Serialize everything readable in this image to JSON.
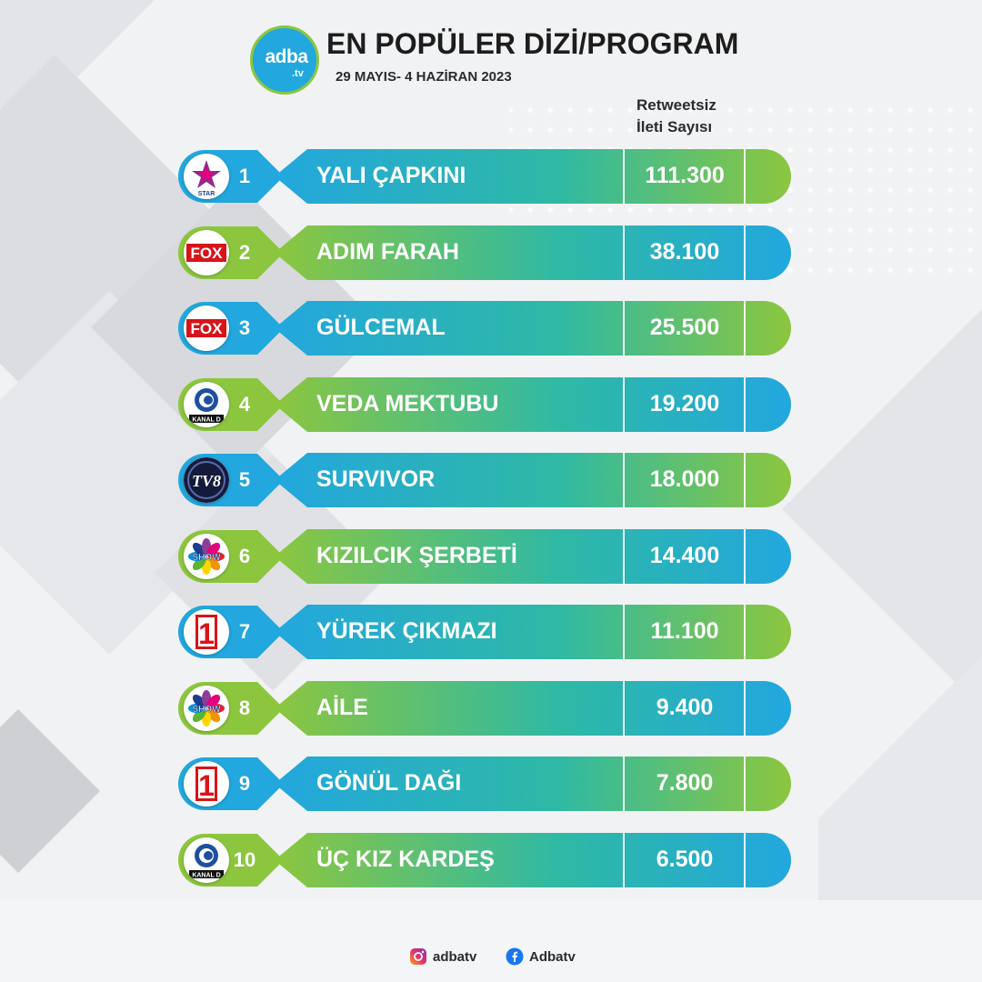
{
  "header": {
    "logo_text": "adba",
    "logo_sub": ".tv",
    "title": "EN POPÜLER DİZİ/PROGRAM",
    "subtitle": "29 MAYIS- 4 HAZİRAN 2023",
    "column_header_line1": "Retweetsiz",
    "column_header_line2": "İleti Sayısı"
  },
  "chart_data": {
    "type": "table",
    "title": "EN POPÜLER DİZİ/PROGRAM",
    "subtitle": "29 MAYIS- 4 HAZİRAN 2023",
    "value_label": "Retweetsiz İleti Sayısı",
    "rows": [
      {
        "rank": "1",
        "name": "YALI ÇAPKINI",
        "value": "111.300",
        "channel": "star-tv-logo",
        "channel_text": "STAR",
        "accent": "blue"
      },
      {
        "rank": "2",
        "name": "ADIM FARAH",
        "value": "38.100",
        "channel": "fox-logo",
        "channel_text": "FOX",
        "accent": "green"
      },
      {
        "rank": "3",
        "name": "GÜLCEMAL",
        "value": "25.500",
        "channel": "fox-logo",
        "channel_text": "FOX",
        "accent": "blue"
      },
      {
        "rank": "4",
        "name": "VEDA MEKTUBU",
        "value": "19.200",
        "channel": "kanal-d-logo",
        "channel_text": "KANAL D",
        "accent": "green"
      },
      {
        "rank": "5",
        "name": "SURVIVOR",
        "value": "18.000",
        "channel": "tv8-logo",
        "channel_text": "TV8",
        "accent": "blue"
      },
      {
        "rank": "6",
        "name": "KIZILCIK ŞERBETİ",
        "value": "14.400",
        "channel": "show-tv-logo",
        "channel_text": "SHOW",
        "accent": "green"
      },
      {
        "rank": "7",
        "name": "YÜREK ÇIKMAZI",
        "value": "11.100",
        "channel": "atv-logo",
        "channel_text": "1",
        "accent": "blue"
      },
      {
        "rank": "8",
        "name": "AİLE",
        "value": "9.400",
        "channel": "show-tv-logo",
        "channel_text": "SHOW",
        "accent": "green"
      },
      {
        "rank": "9",
        "name": "GÖNÜL DAĞI",
        "value": "7.800",
        "channel": "trt1-logo",
        "channel_text": "1",
        "accent": "blue"
      },
      {
        "rank": "10",
        "name": "ÜÇ KIZ KARDEŞ",
        "value": "6.500",
        "channel": "kanal-d-logo",
        "channel_text": "KANAL D",
        "accent": "green"
      }
    ]
  },
  "colors": {
    "blue": "#22a7de",
    "green": "#8cc63f",
    "text_dark": "#2b2b2b"
  },
  "footer": {
    "instagram": "adbatv",
    "facebook": "Adbatv"
  }
}
